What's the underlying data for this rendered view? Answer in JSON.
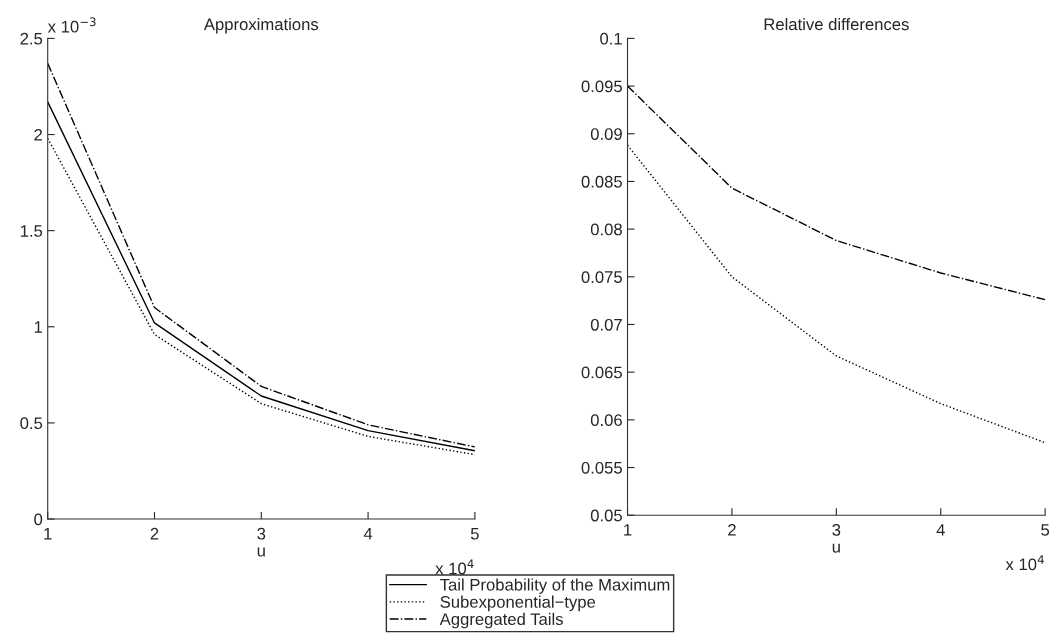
{
  "chart_data": [
    {
      "type": "line",
      "title": "Approximations",
      "xlabel": "u",
      "x": [
        1,
        2,
        3,
        4,
        5
      ],
      "series": [
        {
          "name": "Tail Probability of the Maximum",
          "color": "#000000",
          "line_style": "solid",
          "values": [
            2.17,
            1.02,
            0.64,
            0.46,
            0.355
          ]
        },
        {
          "name": "Subexponential−type",
          "color": "#000000",
          "line_style": "dotted",
          "values": [
            1.98,
            0.96,
            0.6,
            0.43,
            0.335
          ]
        },
        {
          "name": "Aggregated Tails",
          "color": "#000000",
          "line_style": "dashdot",
          "values": [
            2.37,
            1.1,
            0.69,
            0.49,
            0.375
          ]
        }
      ],
      "xlim": [
        1,
        5
      ],
      "xticks": [
        1,
        2,
        3,
        4,
        5
      ],
      "ylim": [
        0,
        2.5
      ],
      "yticks": [
        0,
        0.5,
        1,
        1.5,
        2,
        2.5
      ],
      "annotations": [
        "x 10$^{4}$",
        "x 10$^{−3}$"
      ],
      "legend": "bottom",
      "grid": false
    },
    {
      "type": "line",
      "title": "Relative differences",
      "xlabel": "u",
      "x": [
        1,
        2,
        3,
        4,
        5
      ],
      "series": [
        {
          "color": "#000000",
          "line_style": "dotted",
          "values": [
            0.0888,
            0.075,
            0.0667,
            0.0617,
            0.0576
          ]
        },
        {
          "color": "#000000",
          "line_style": "dashdot",
          "values": [
            0.095,
            0.0843,
            0.0788,
            0.0754,
            0.0726
          ]
        }
      ],
      "xlim": [
        1,
        5
      ],
      "xticks": [
        1,
        2,
        3,
        4,
        5
      ],
      "ylim": [
        0.05,
        0.1
      ],
      "yticks": [
        0.05,
        0.055,
        0.06,
        0.065,
        0.07,
        0.075,
        0.08,
        0.085,
        0.09,
        0.095,
        0.1
      ],
      "annotations": [
        "x 10$^{4}$"
      ],
      "grid": false
    }
  ]
}
